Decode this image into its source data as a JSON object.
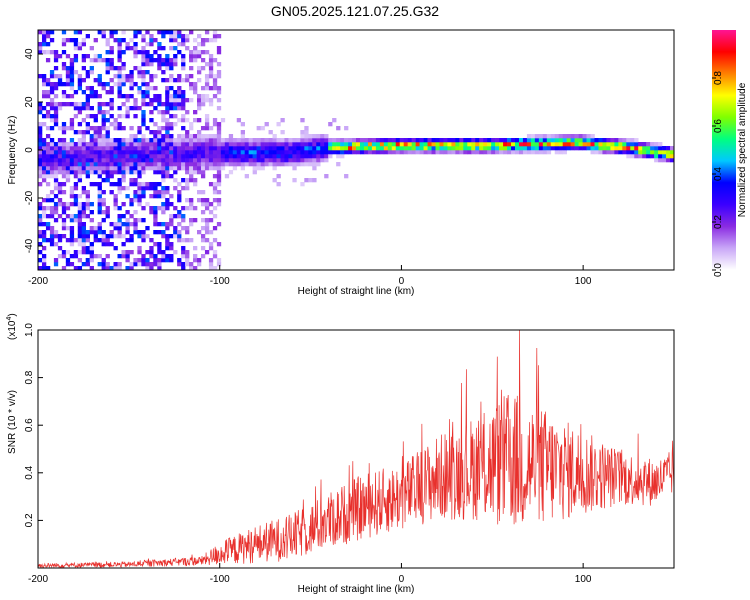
{
  "title": "GN05.2025.121.07.25.G32",
  "chart_data": [
    {
      "type": "heatmap",
      "xlabel": "Height of straight line (km)",
      "ylabel": "Frequency (Hz)",
      "xlim": [
        -200,
        150
      ],
      "ylim": [
        -50,
        50
      ],
      "x_ticks": [
        -200,
        -100,
        0,
        100
      ],
      "y_ticks": [
        -40,
        -20,
        0,
        20,
        40
      ],
      "colorbar": {
        "label": "Normalized spectral amplitude",
        "range": [
          0,
          1
        ],
        "ticks": [
          "0.0",
          "0.2",
          "0.4",
          "0.6",
          "0.8"
        ],
        "colors": [
          "#ffffff",
          "#c9a7f7",
          "#8a2be2",
          "#3b00ff",
          "#0000ff",
          "#00c8ff",
          "#00ff80",
          "#80ff00",
          "#ffff00",
          "#ff8000",
          "#ff0000",
          "#ff1493"
        ]
      },
      "ridge": [
        {
          "x": -200,
          "f": -4
        },
        {
          "x": -150,
          "f": -2
        },
        {
          "x": -100,
          "f": -1
        },
        {
          "x": -60,
          "f": -1
        },
        {
          "x": -40,
          "f": 1
        },
        {
          "x": 0,
          "f": 2
        },
        {
          "x": 50,
          "f": 2
        },
        {
          "x": 100,
          "f": 3
        },
        {
          "x": 125,
          "f": 1
        },
        {
          "x": 150,
          "f": -2
        }
      ]
    },
    {
      "type": "line",
      "xlabel": "Height of straight line (km)",
      "ylabel": "SNR (10 * v/v)",
      "y_multiplier": "(x10",
      "y_multiplier_exp": "4",
      "y_multiplier_close": ")",
      "xlim": [
        -200,
        150
      ],
      "ylim": [
        0,
        1.0
      ],
      "x_ticks": [
        -200,
        -100,
        0,
        100
      ],
      "y_ticks": [
        "0.2",
        "0.4",
        "0.6",
        "0.8",
        "1.0"
      ],
      "color": "#e8302c",
      "envelope": [
        {
          "x": -200,
          "mean": 0.01,
          "amp": 0.01
        },
        {
          "x": -150,
          "mean": 0.015,
          "amp": 0.012
        },
        {
          "x": -110,
          "mean": 0.03,
          "amp": 0.02
        },
        {
          "x": -100,
          "mean": 0.06,
          "amp": 0.05
        },
        {
          "x": -80,
          "mean": 0.1,
          "amp": 0.08
        },
        {
          "x": -60,
          "mean": 0.13,
          "amp": 0.1
        },
        {
          "x": -40,
          "mean": 0.2,
          "amp": 0.12
        },
        {
          "x": -20,
          "mean": 0.26,
          "amp": 0.14
        },
        {
          "x": 0,
          "mean": 0.3,
          "amp": 0.14
        },
        {
          "x": 20,
          "mean": 0.38,
          "amp": 0.18
        },
        {
          "x": 40,
          "mean": 0.42,
          "amp": 0.22
        },
        {
          "x": 60,
          "mean": 0.45,
          "amp": 0.3
        },
        {
          "x": 80,
          "mean": 0.42,
          "amp": 0.25
        },
        {
          "x": 100,
          "mean": 0.4,
          "amp": 0.18
        },
        {
          "x": 120,
          "mean": 0.38,
          "amp": 0.12
        },
        {
          "x": 140,
          "mean": 0.36,
          "amp": 0.1
        },
        {
          "x": 150,
          "mean": 0.4,
          "amp": 0.1
        }
      ],
      "peak": {
        "x": 65,
        "y": 1.0
      }
    }
  ]
}
